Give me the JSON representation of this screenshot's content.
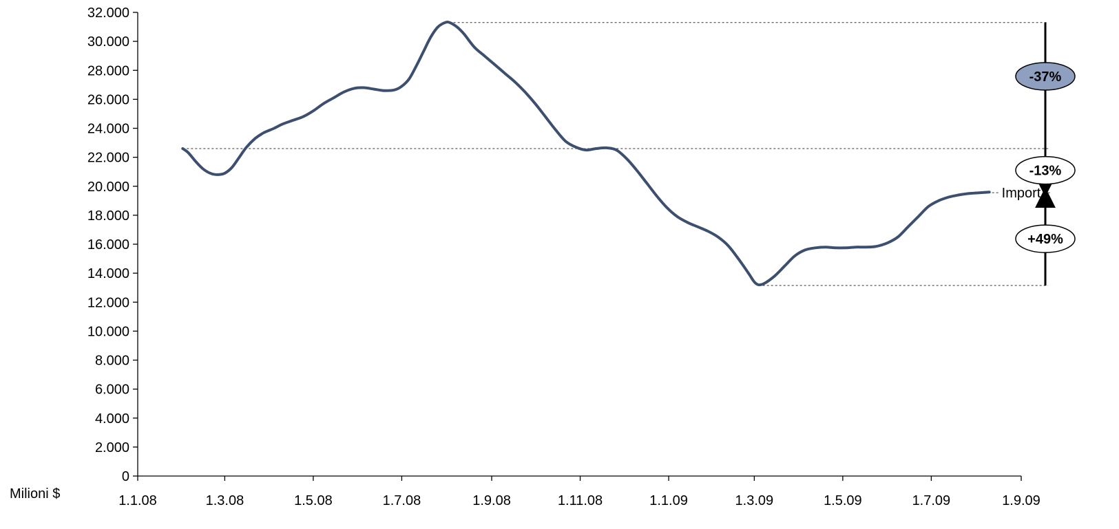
{
  "chart_data": {
    "type": "line",
    "ylabel": "Milioni $",
    "ylim": [
      0,
      32000
    ],
    "yticks": [
      0,
      2000,
      4000,
      6000,
      8000,
      10000,
      12000,
      14000,
      16000,
      18000,
      20000,
      22000,
      24000,
      26000,
      28000,
      30000,
      32000
    ],
    "ytick_labels": [
      "0",
      "2.000",
      "4.000",
      "6.000",
      "8.000",
      "10.000",
      "12.000",
      "14.000",
      "16.000",
      "18.000",
      "20.000",
      "22.000",
      "24.000",
      "26.000",
      "28.000",
      "30.000",
      "32.000"
    ],
    "xlim": [
      "2008-01-01",
      "2009-09-01"
    ],
    "xticks": [
      "2008-01-01",
      "2008-03-01",
      "2008-05-01",
      "2008-07-01",
      "2008-09-01",
      "2008-11-01",
      "2009-01-01",
      "2009-03-01",
      "2009-05-01",
      "2009-07-01",
      "2009-09-01"
    ],
    "xtick_labels": [
      "1.1.08",
      "1.3.08",
      "1.5.08",
      "1.7.08",
      "1.9.08",
      "1.11.08",
      "1.1.09",
      "1.3.09",
      "1.5.09",
      "1.7.09",
      "1.9.09"
    ],
    "grid": false,
    "line_color": "#3d4f6e",
    "series": [
      {
        "name": "Import",
        "points": [
          [
            "2008-02-01",
            22600
          ],
          [
            "2008-02-05",
            22300
          ],
          [
            "2008-02-10",
            21700
          ],
          [
            "2008-02-15",
            21200
          ],
          [
            "2008-02-20",
            20900
          ],
          [
            "2008-02-25",
            20800
          ],
          [
            "2008-03-01",
            20900
          ],
          [
            "2008-03-06",
            21300
          ],
          [
            "2008-03-11",
            22000
          ],
          [
            "2008-03-16",
            22700
          ],
          [
            "2008-03-22",
            23300
          ],
          [
            "2008-03-28",
            23700
          ],
          [
            "2008-04-04",
            24000
          ],
          [
            "2008-04-10",
            24300
          ],
          [
            "2008-04-17",
            24550
          ],
          [
            "2008-04-24",
            24800
          ],
          [
            "2008-05-01",
            25200
          ],
          [
            "2008-05-08",
            25700
          ],
          [
            "2008-05-15",
            26100
          ],
          [
            "2008-05-22",
            26500
          ],
          [
            "2008-05-29",
            26750
          ],
          [
            "2008-06-05",
            26800
          ],
          [
            "2008-06-12",
            26700
          ],
          [
            "2008-06-19",
            26600
          ],
          [
            "2008-06-26",
            26650
          ],
          [
            "2008-07-01",
            26900
          ],
          [
            "2008-07-06",
            27400
          ],
          [
            "2008-07-11",
            28300
          ],
          [
            "2008-07-16",
            29300
          ],
          [
            "2008-07-21",
            30300
          ],
          [
            "2008-07-26",
            31000
          ],
          [
            "2008-07-31",
            31300
          ],
          [
            "2008-08-03",
            31300
          ],
          [
            "2008-08-08",
            31000
          ],
          [
            "2008-08-13",
            30500
          ],
          [
            "2008-08-20",
            29600
          ],
          [
            "2008-08-27",
            29000
          ],
          [
            "2008-09-03",
            28400
          ],
          [
            "2008-09-10",
            27800
          ],
          [
            "2008-09-17",
            27200
          ],
          [
            "2008-09-24",
            26500
          ],
          [
            "2008-10-01",
            25700
          ],
          [
            "2008-10-08",
            24800
          ],
          [
            "2008-10-15",
            23900
          ],
          [
            "2008-10-22",
            23100
          ],
          [
            "2008-10-29",
            22700
          ],
          [
            "2008-11-05",
            22500
          ],
          [
            "2008-11-12",
            22600
          ],
          [
            "2008-11-19",
            22650
          ],
          [
            "2008-11-26",
            22500
          ],
          [
            "2008-12-03",
            21900
          ],
          [
            "2008-12-10",
            21100
          ],
          [
            "2008-12-17",
            20200
          ],
          [
            "2008-12-24",
            19300
          ],
          [
            "2008-12-31",
            18500
          ],
          [
            "2009-01-07",
            17900
          ],
          [
            "2009-01-14",
            17500
          ],
          [
            "2009-01-21",
            17200
          ],
          [
            "2009-01-28",
            16900
          ],
          [
            "2009-02-04",
            16500
          ],
          [
            "2009-02-11",
            15900
          ],
          [
            "2009-02-18",
            15000
          ],
          [
            "2009-02-25",
            14000
          ],
          [
            "2009-03-01",
            13400
          ],
          [
            "2009-03-04",
            13200
          ],
          [
            "2009-03-08",
            13300
          ],
          [
            "2009-03-15",
            13800
          ],
          [
            "2009-03-22",
            14500
          ],
          [
            "2009-03-29",
            15200
          ],
          [
            "2009-04-05",
            15600
          ],
          [
            "2009-04-12",
            15750
          ],
          [
            "2009-04-19",
            15800
          ],
          [
            "2009-04-26",
            15750
          ],
          [
            "2009-05-03",
            15750
          ],
          [
            "2009-05-10",
            15800
          ],
          [
            "2009-05-17",
            15800
          ],
          [
            "2009-05-24",
            15850
          ],
          [
            "2009-06-01",
            16100
          ],
          [
            "2009-06-08",
            16500
          ],
          [
            "2009-06-15",
            17200
          ],
          [
            "2009-06-22",
            17900
          ],
          [
            "2009-06-29",
            18600
          ],
          [
            "2009-07-06",
            19000
          ],
          [
            "2009-07-13",
            19250
          ],
          [
            "2009-07-20",
            19400
          ],
          [
            "2009-07-27",
            19500
          ],
          [
            "2009-08-03",
            19550
          ],
          [
            "2009-08-10",
            19600
          ]
        ]
      }
    ],
    "reference_lines": [
      {
        "value": 31300,
        "from": "2008-07-31"
      },
      {
        "value": 22600,
        "from": "2008-02-01"
      },
      {
        "value": 13150,
        "from": "2009-03-04"
      }
    ],
    "annotations": [
      {
        "text": "-37%",
        "from": 31300,
        "to": 19600,
        "fill": "#8e9fc0"
      },
      {
        "text": "-13%",
        "from": 22600,
        "to": 19600,
        "fill": "#ffffff"
      },
      {
        "text": "+49%",
        "from": 13150,
        "to": 19600,
        "fill": "#ffffff"
      }
    ]
  }
}
